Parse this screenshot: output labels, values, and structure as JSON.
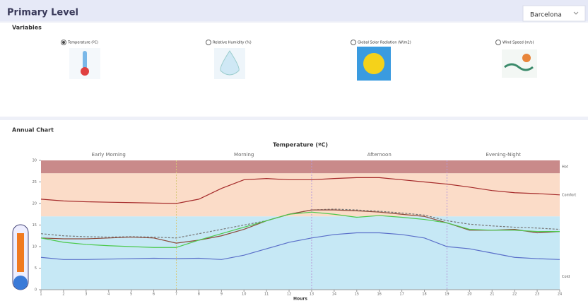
{
  "header": {
    "title": "Primary Level",
    "city": "Barcelona"
  },
  "variables": {
    "title": "Variables",
    "options": [
      "Temperature (ºC)",
      "Relative Humidity (%)",
      "Global Solar Radiation (W/m2)",
      "Wind Speed (m/s)"
    ],
    "selected": 0
  },
  "annual": {
    "title": "Annual Chart"
  },
  "chart_data": {
    "type": "line",
    "title": "Temperature (ºC)",
    "x_label": "Hours",
    "x": [
      1,
      2,
      3,
      4,
      5,
      6,
      7,
      8,
      9,
      10,
      11,
      12,
      13,
      14,
      15,
      16,
      17,
      18,
      19,
      20,
      21,
      22,
      23,
      24
    ],
    "xlim": [
      1,
      24
    ],
    "xticks": [
      1,
      2,
      3,
      4,
      5,
      6,
      7,
      8,
      9,
      10,
      11,
      12,
      13,
      14,
      15,
      16,
      17,
      18,
      19,
      20,
      21,
      22,
      23,
      24
    ],
    "ylim": [
      0,
      30
    ],
    "yticks": [
      0,
      5,
      10,
      15,
      20,
      25,
      30
    ],
    "bands": [
      {
        "label": "Hot",
        "from": 27,
        "to": 30,
        "color": "#c98a8a"
      },
      {
        "label": "Comfort",
        "from": 17,
        "to": 27,
        "color": "#fbdcc8"
      },
      {
        "label": "Cold",
        "from": 0,
        "to": 17,
        "color": "#c6e8f5"
      }
    ],
    "periods": [
      {
        "label": "Early Morning",
        "from": 1,
        "to": 7,
        "color": "#c8c27a"
      },
      {
        "label": "Morning",
        "from": 7,
        "to": 13,
        "color": "#d8c878"
      },
      {
        "label": "Afternoon",
        "from": 13,
        "to": 19,
        "color": "#b79ad8"
      },
      {
        "label": "Evening-Night",
        "from": 19,
        "to": 24,
        "color": "#b79ad8"
      }
    ],
    "series": [
      {
        "color": "#a52a2a",
        "dash": false,
        "values": [
          21,
          20.6,
          20.4,
          20.3,
          20.2,
          20.1,
          20,
          21,
          23.5,
          25.5,
          25.8,
          25.5,
          25.5,
          25.8,
          26,
          26,
          25.5,
          25,
          24.5,
          23.8,
          23,
          22.5,
          22.3,
          22
        ]
      },
      {
        "color": "#777777",
        "dash": true,
        "values": [
          13,
          12.5,
          12.3,
          12.2,
          12.3,
          12.2,
          12,
          13,
          14,
          15,
          16,
          17.5,
          18.5,
          18.7,
          18.5,
          18.2,
          17.8,
          17.3,
          16,
          15.2,
          14.8,
          14.5,
          14.3,
          14
        ]
      },
      {
        "color": "#8b4a3a",
        "dash": false,
        "values": [
          12,
          11.8,
          11.8,
          12,
          12.2,
          12,
          10.8,
          11.5,
          12.5,
          14,
          16,
          17.5,
          18.5,
          18.5,
          18.3,
          18,
          17.5,
          17,
          15.5,
          13.8,
          13.8,
          14,
          13.2,
          13.5
        ]
      },
      {
        "color": "#4cc94c",
        "dash": false,
        "values": [
          12,
          11,
          10.5,
          10.2,
          10,
          9.8,
          9.8,
          11.5,
          13,
          14.5,
          16,
          17.5,
          18,
          17.5,
          16.8,
          17.2,
          16.8,
          16.3,
          15.5,
          14,
          13.8,
          13.8,
          13.5,
          13.5
        ]
      },
      {
        "color": "#5a6fc9",
        "dash": false,
        "values": [
          7.5,
          7,
          7,
          7.1,
          7.2,
          7.3,
          7.2,
          7.3,
          7,
          8,
          9.5,
          11,
          12,
          12.8,
          13.2,
          13.2,
          12.8,
          12,
          10,
          9.5,
          8.5,
          7.5,
          7.2,
          7
        ]
      }
    ]
  }
}
